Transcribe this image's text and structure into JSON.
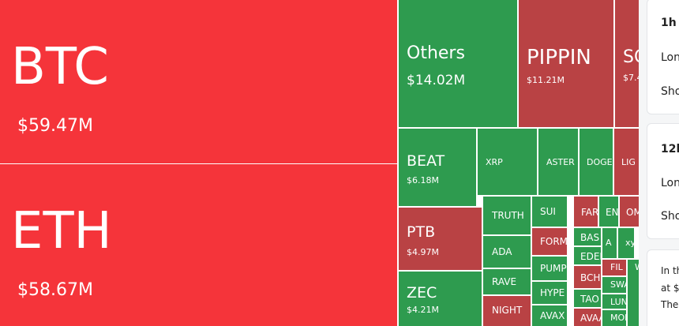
{
  "tiles": [
    {
      "label": "BTC",
      "value": "$59.47M"
    },
    {
      "label": "ETH",
      "value": "$58.67M"
    },
    {
      "label": "Others",
      "value": "$14.02M"
    },
    {
      "label": "PIPPIN",
      "value": "$11.21M"
    },
    {
      "label": "SO",
      "value": "$7.4"
    },
    {
      "label": "BEAT",
      "value": "$6.18M"
    },
    {
      "label": "XRP"
    },
    {
      "label": "ASTER"
    },
    {
      "label": "DOGE"
    },
    {
      "label": "LIG"
    },
    {
      "label": "PTB",
      "value": "$4.97M"
    },
    {
      "label": "ZEC",
      "value": "$4.21M"
    },
    {
      "label": "TRUTH"
    },
    {
      "label": "ADA"
    },
    {
      "label": "RAVE"
    },
    {
      "label": "NIGHT"
    },
    {
      "label": "SUI"
    },
    {
      "label": "FORM"
    },
    {
      "label": "PUMP"
    },
    {
      "label": "HYPE"
    },
    {
      "label": "AVAX"
    },
    {
      "label": "FAR"
    },
    {
      "label": "EN"
    },
    {
      "label": "OM"
    },
    {
      "label": "BAS"
    },
    {
      "label": "EDEN"
    },
    {
      "label": "BCH"
    },
    {
      "label": "TAO"
    },
    {
      "label": "AVAA"
    },
    {
      "label": "A"
    },
    {
      "label": "xy"
    },
    {
      "label": "FIL"
    },
    {
      "label": "SWA"
    },
    {
      "label": "LUN"
    },
    {
      "label": "MOI"
    },
    {
      "label": "W"
    }
  ],
  "panel": {
    "cards": [
      {
        "title": "1h",
        "lines": [
          "Lon",
          "Sho"
        ]
      },
      {
        "title": "12h",
        "lines": [
          "Lon",
          "Sho"
        ]
      }
    ],
    "note": [
      "In th",
      "at $",
      "The"
    ]
  }
}
